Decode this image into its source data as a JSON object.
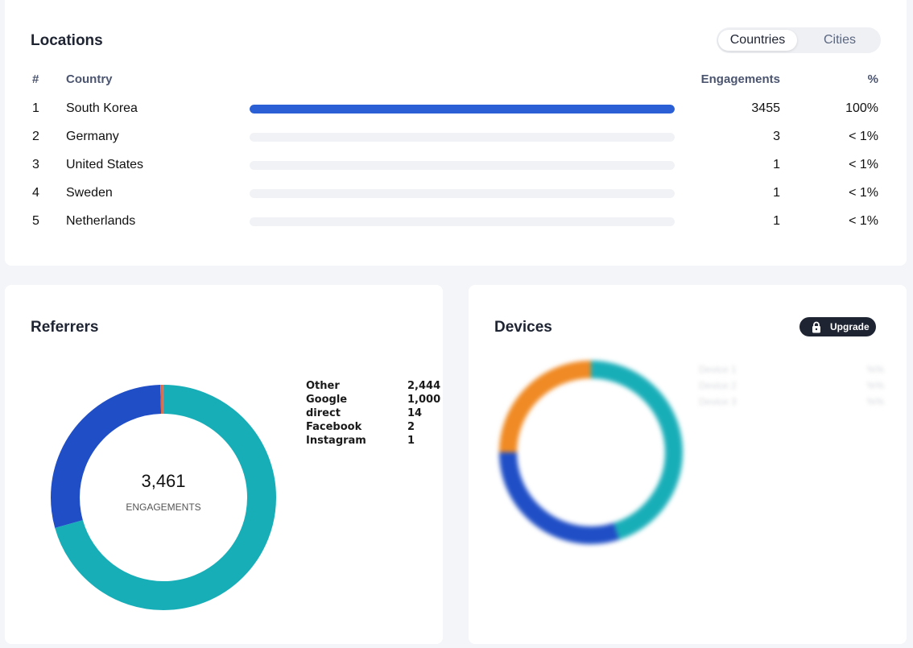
{
  "locations": {
    "title": "Locations",
    "tabs": [
      {
        "label": "Countries",
        "active": true
      },
      {
        "label": "Cities",
        "active": false
      }
    ],
    "columns": {
      "rank": "#",
      "country": "Country",
      "engagements": "Engagements",
      "percent": "%"
    },
    "rows": [
      {
        "rank": "1",
        "country": "South Korea",
        "engagements": "3455",
        "percent": "100%",
        "share": 1.0
      },
      {
        "rank": "2",
        "country": "Germany",
        "engagements": "3",
        "percent": "< 1%",
        "share": 0
      },
      {
        "rank": "3",
        "country": "United States",
        "engagements": "1",
        "percent": "< 1%",
        "share": 0
      },
      {
        "rank": "4",
        "country": "Sweden",
        "engagements": "1",
        "percent": "< 1%",
        "share": 0
      },
      {
        "rank": "5",
        "country": "Netherlands",
        "engagements": "1",
        "percent": "< 1%",
        "share": 0
      }
    ],
    "bar_color": "#2b5fd6"
  },
  "referrers": {
    "title": "Referrers",
    "total": "3,461",
    "total_label": "ENGAGEMENTS",
    "items": [
      {
        "name": "Other",
        "value": "2,444",
        "count": 2444,
        "color": "#18aeb8"
      },
      {
        "name": "Google",
        "value": "1,000",
        "count": 1000,
        "color": "#1f4ec6"
      },
      {
        "name": "direct",
        "value": "14",
        "count": 14,
        "color": "#e36a37"
      },
      {
        "name": "Facebook",
        "value": "2",
        "count": 2,
        "color": "#7b8bd0"
      },
      {
        "name": "Instagram",
        "value": "1",
        "count": 1,
        "color": "#c93fa0"
      }
    ]
  },
  "devices": {
    "title": "Devices",
    "upgrade_label": "Upgrade",
    "icon": "lock-icon",
    "blurred_rows": [
      {
        "name": "Device 1",
        "value": "%%"
      },
      {
        "name": "Device 2",
        "value": "%%"
      },
      {
        "name": "Device 3",
        "value": "%%"
      }
    ],
    "segments": [
      {
        "share": 0.45,
        "color": "#18aeb8"
      },
      {
        "share": 0.3,
        "color": "#1f4ec6"
      },
      {
        "share": 0.25,
        "color": "#f08a24"
      }
    ]
  }
}
